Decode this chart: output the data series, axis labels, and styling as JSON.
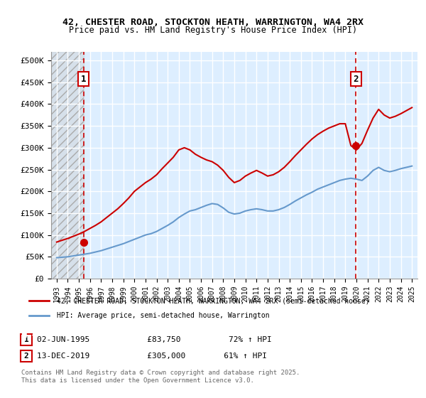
{
  "title1": "42, CHESTER ROAD, STOCKTON HEATH, WARRINGTON, WA4 2RX",
  "title2": "Price paid vs. HM Land Registry's House Price Index (HPI)",
  "ylabel": "",
  "xlim": [
    1992.5,
    2025.5
  ],
  "ylim": [
    0,
    520000
  ],
  "yticks": [
    0,
    50000,
    100000,
    150000,
    200000,
    250000,
    300000,
    350000,
    400000,
    450000,
    500000
  ],
  "ytick_labels": [
    "£0",
    "£50K",
    "£100K",
    "£150K",
    "£200K",
    "£250K",
    "£300K",
    "£350K",
    "£400K",
    "£450K",
    "£500K"
  ],
  "xtick_years": [
    1993,
    1994,
    1995,
    1996,
    1997,
    1998,
    1999,
    2000,
    2001,
    2002,
    2003,
    2004,
    2005,
    2006,
    2007,
    2008,
    2009,
    2010,
    2011,
    2012,
    2013,
    2014,
    2015,
    2016,
    2017,
    2018,
    2019,
    2020,
    2021,
    2022,
    2023,
    2024,
    2025
  ],
  "sale1_x": 1995.42,
  "sale1_y": 83750,
  "sale2_x": 2019.95,
  "sale2_y": 305000,
  "red_line_color": "#cc0000",
  "blue_line_color": "#6699cc",
  "hatch_color": "#cccccc",
  "background_color": "#ddeeff",
  "grid_color": "#ffffff",
  "legend_label_red": "42, CHESTER ROAD, STOCKTON HEATH, WARRINGTON, WA4 2RX (semi-detached house)",
  "legend_label_blue": "HPI: Average price, semi-detached house, Warrington",
  "annotation1_label": "1",
  "annotation2_label": "2",
  "note1": "1    02-JUN-1995            £83,750          72% ↑ HPI",
  "note2": "2    13-DEC-2019            £305,000        61% ↑ HPI",
  "footer": "Contains HM Land Registry data © Crown copyright and database right 2025.\nThis data is licensed under the Open Government Licence v3.0.",
  "hpi_x": [
    1993,
    1993.5,
    1994,
    1994.5,
    1995,
    1995.5,
    1996,
    1996.5,
    1997,
    1997.5,
    1998,
    1998.5,
    1999,
    1999.5,
    2000,
    2000.5,
    2001,
    2001.5,
    2002,
    2002.5,
    2003,
    2003.5,
    2004,
    2004.5,
    2005,
    2005.5,
    2006,
    2006.5,
    2007,
    2007.5,
    2008,
    2008.5,
    2009,
    2009.5,
    2010,
    2010.5,
    2011,
    2011.5,
    2012,
    2012.5,
    2013,
    2013.5,
    2014,
    2014.5,
    2015,
    2015.5,
    2016,
    2016.5,
    2017,
    2017.5,
    2018,
    2018.5,
    2019,
    2019.5,
    2020,
    2020.5,
    2021,
    2021.5,
    2022,
    2022.5,
    2023,
    2023.5,
    2024,
    2024.5,
    2025
  ],
  "hpi_y": [
    48000,
    49000,
    50000,
    52000,
    54000,
    56000,
    58000,
    61000,
    64000,
    68000,
    72000,
    76000,
    80000,
    85000,
    90000,
    95000,
    100000,
    103000,
    108000,
    115000,
    122000,
    130000,
    140000,
    148000,
    155000,
    158000,
    163000,
    168000,
    172000,
    170000,
    162000,
    152000,
    148000,
    150000,
    155000,
    158000,
    160000,
    158000,
    155000,
    155000,
    158000,
    163000,
    170000,
    178000,
    185000,
    192000,
    198000,
    205000,
    210000,
    215000,
    220000,
    225000,
    228000,
    230000,
    228000,
    225000,
    235000,
    248000,
    255000,
    248000,
    245000,
    248000,
    252000,
    255000,
    258000
  ],
  "red_x": [
    1993,
    1993.5,
    1994,
    1994.5,
    1995,
    1995.5,
    1996,
    1996.5,
    1997,
    1997.5,
    1998,
    1998.5,
    1999,
    1999.5,
    2000,
    2000.5,
    2001,
    2001.5,
    2002,
    2002.5,
    2003,
    2003.5,
    2004,
    2004.5,
    2005,
    2005.5,
    2006,
    2006.5,
    2007,
    2007.5,
    2008,
    2008.5,
    2009,
    2009.5,
    2010,
    2010.5,
    2011,
    2011.5,
    2012,
    2012.5,
    2013,
    2013.5,
    2014,
    2014.5,
    2015,
    2015.5,
    2016,
    2016.5,
    2017,
    2017.5,
    2018,
    2018.5,
    2019,
    2019.5,
    2020,
    2020.5,
    2021,
    2021.5,
    2022,
    2022.5,
    2023,
    2023.5,
    2024,
    2024.5,
    2025
  ],
  "red_y": [
    83750,
    88000,
    92000,
    97000,
    102000,
    108000,
    115000,
    122000,
    130000,
    140000,
    150000,
    160000,
    172000,
    185000,
    200000,
    210000,
    220000,
    228000,
    238000,
    252000,
    265000,
    278000,
    295000,
    300000,
    295000,
    285000,
    278000,
    272000,
    268000,
    260000,
    248000,
    232000,
    220000,
    225000,
    235000,
    242000,
    248000,
    242000,
    235000,
    238000,
    245000,
    255000,
    268000,
    282000,
    295000,
    308000,
    320000,
    330000,
    338000,
    345000,
    350000,
    355000,
    355000,
    305000,
    295000,
    310000,
    340000,
    368000,
    388000,
    375000,
    368000,
    372000,
    378000,
    385000,
    392000
  ]
}
